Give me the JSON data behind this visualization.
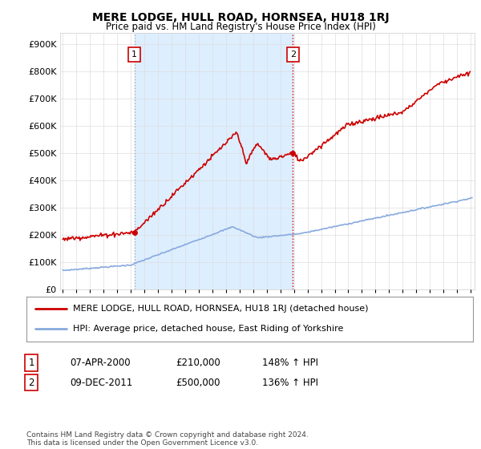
{
  "title": "MERE LODGE, HULL ROAD, HORNSEA, HU18 1RJ",
  "subtitle": "Price paid vs. HM Land Registry's House Price Index (HPI)",
  "ylabel_ticks": [
    "£0",
    "£100K",
    "£200K",
    "£300K",
    "£400K",
    "£500K",
    "£600K",
    "£700K",
    "£800K",
    "£900K"
  ],
  "ytick_values": [
    0,
    100000,
    200000,
    300000,
    400000,
    500000,
    600000,
    700000,
    800000,
    900000
  ],
  "ylim": [
    0,
    940000
  ],
  "xlim_start": 1994.8,
  "xlim_end": 2025.3,
  "property_color": "#cc0000",
  "hpi_color": "#88aadd",
  "shade_color": "#ddeeff",
  "sale1_year": 2000.27,
  "sale1_price": 210000,
  "sale2_year": 2011.92,
  "sale2_price": 500000,
  "legend_property": "MERE LODGE, HULL ROAD, HORNSEA, HU18 1RJ (detached house)",
  "legend_hpi": "HPI: Average price, detached house, East Riding of Yorkshire",
  "table_row1": [
    "1",
    "07-APR-2000",
    "£210,000",
    "148% ↑ HPI"
  ],
  "table_row2": [
    "2",
    "09-DEC-2011",
    "£500,000",
    "136% ↑ HPI"
  ],
  "footer": "Contains HM Land Registry data © Crown copyright and database right 2024.\nThis data is licensed under the Open Government Licence v3.0.",
  "background_color": "#ffffff",
  "grid_color": "#dddddd",
  "vline_color": "#cc0000",
  "annotation_box_color": "#cc0000"
}
